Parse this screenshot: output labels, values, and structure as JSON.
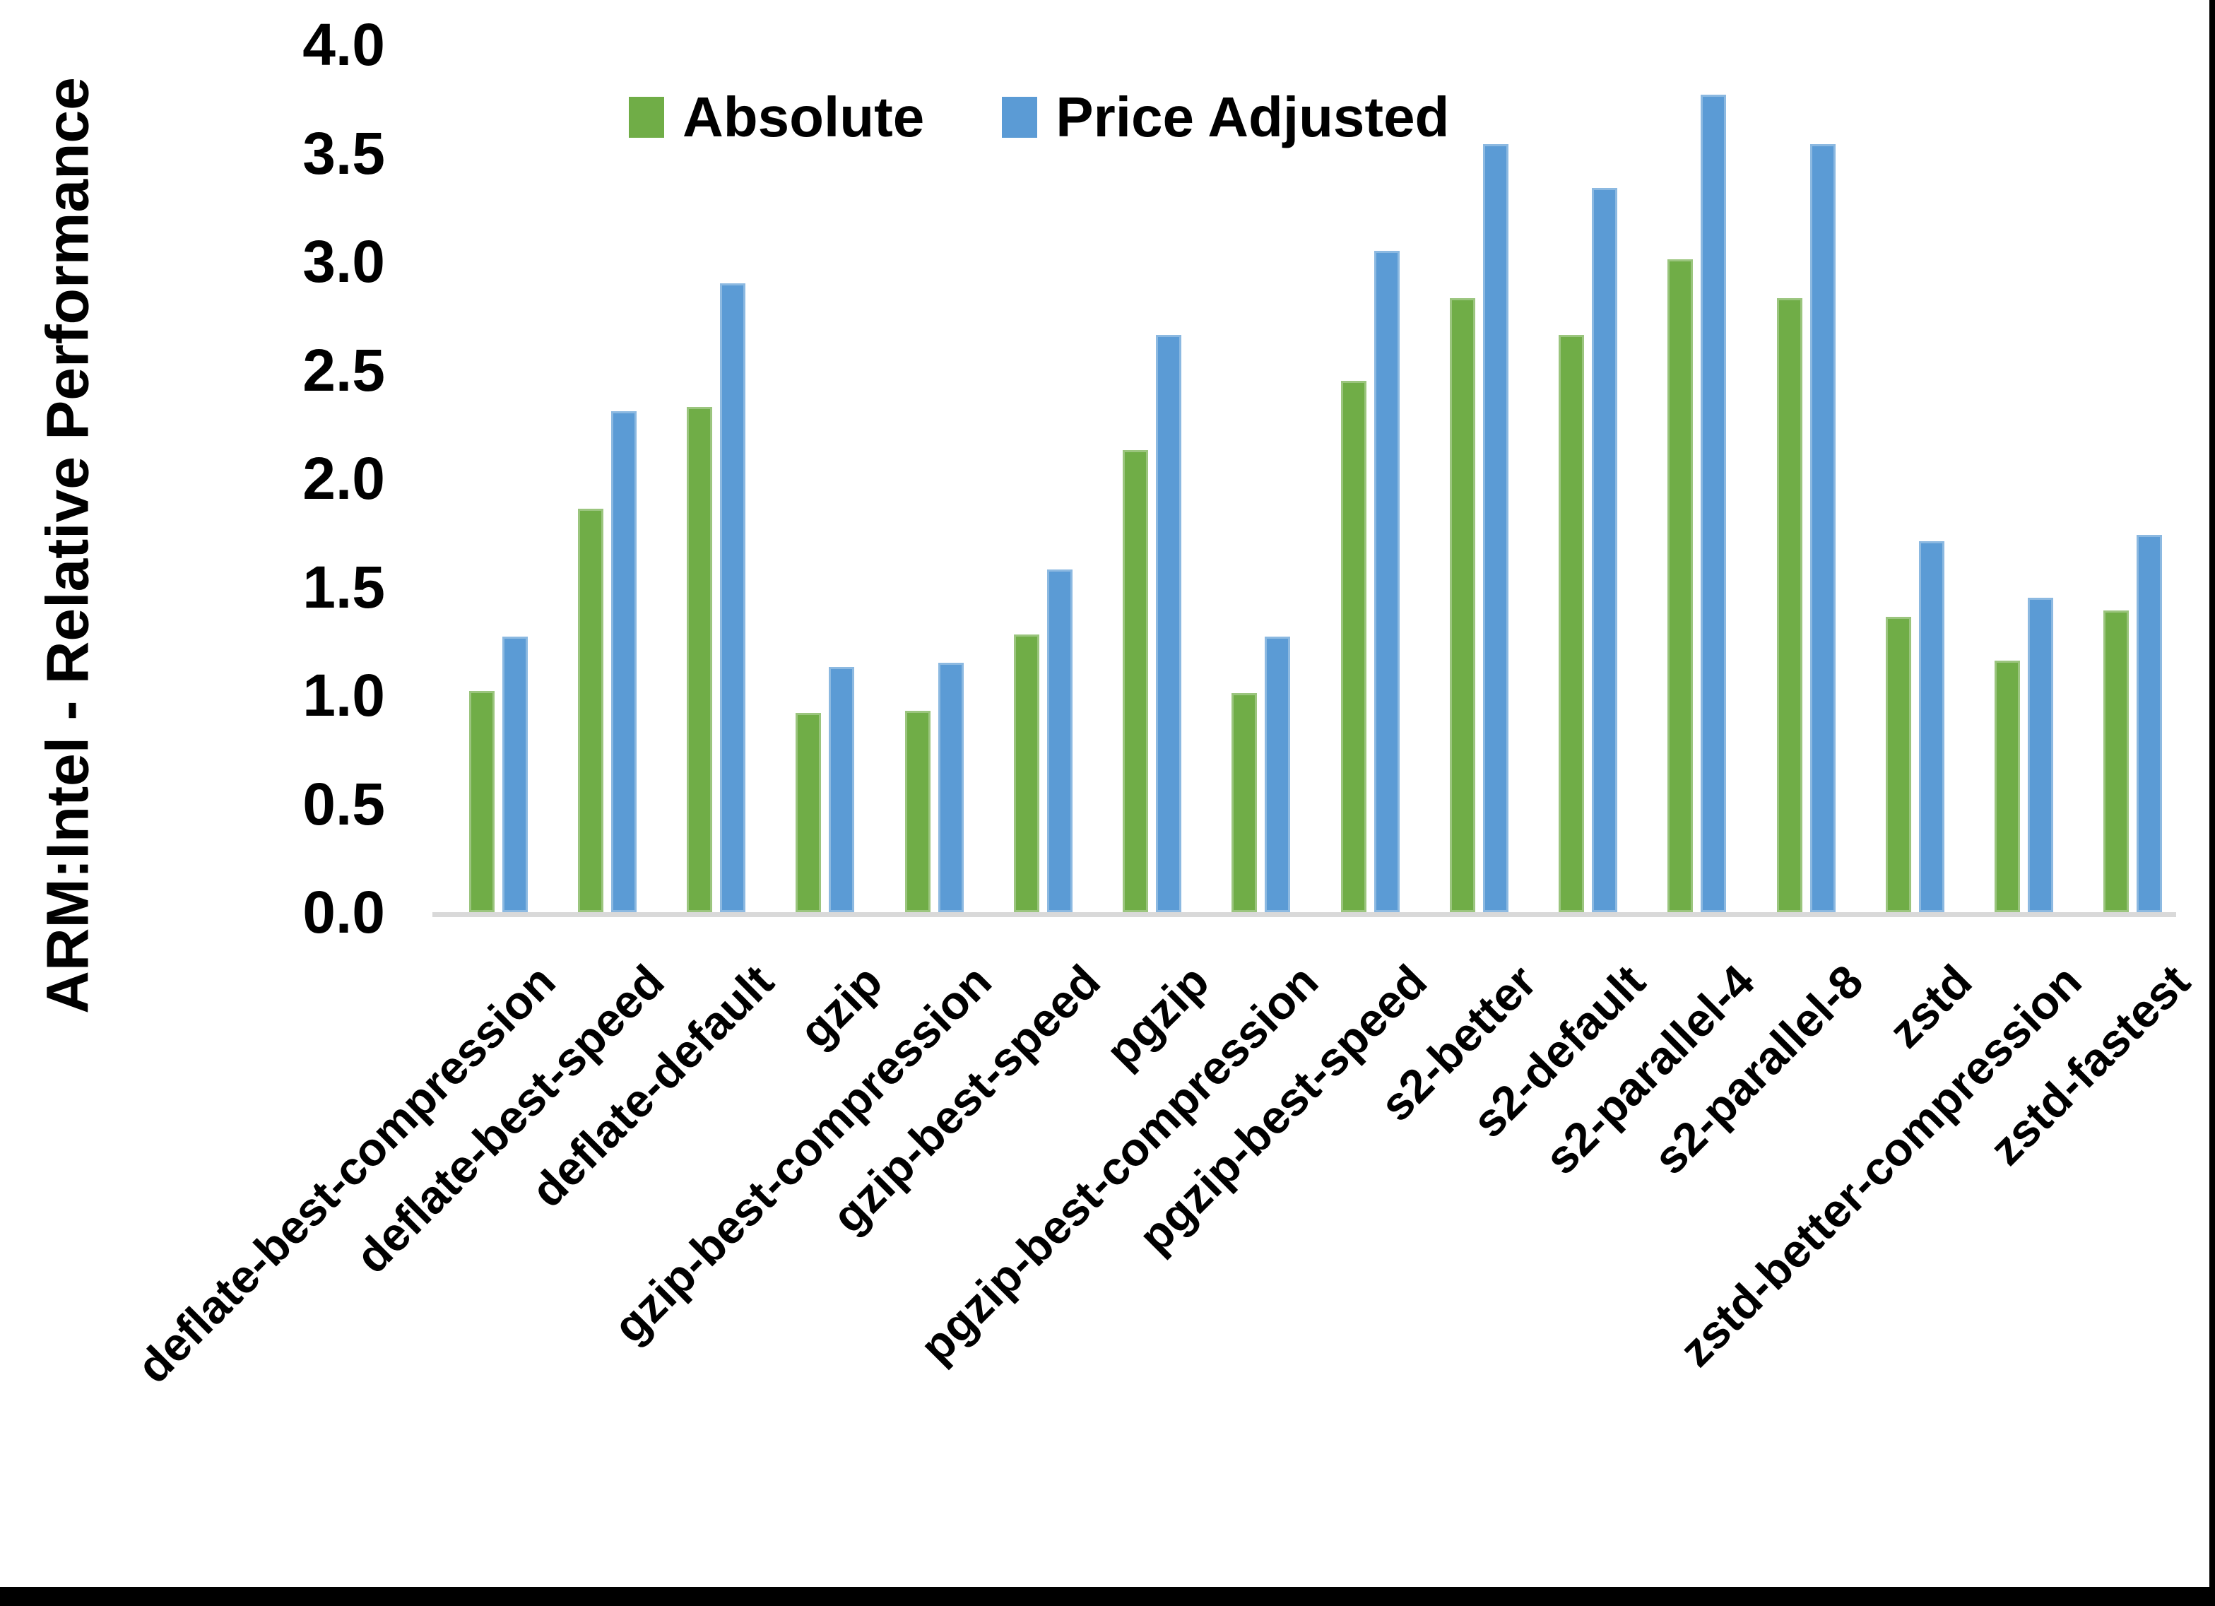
{
  "frame": {
    "background": "#ffffff",
    "axis_line_color": "#d9d9d9",
    "bottom_border_color": "#000000",
    "right_border_color": "#000000"
  },
  "chart_data": {
    "type": "bar",
    "title": "",
    "xlabel": "",
    "ylabel": "ARM:Intel - Relative Performance",
    "ylim": [
      0,
      4
    ],
    "ytick_step": 0.5,
    "yticks": [
      "4.0",
      "3.5",
      "3.0",
      "2.5",
      "2.0",
      "1.5",
      "1.0",
      "0.5",
      "0.0"
    ],
    "grid": false,
    "legend_position": "top-center",
    "categories": [
      "deflate-best-compression",
      "deflate-best-speed",
      "deflate-default",
      "gzip",
      "gzip-best-compression",
      "gzip-best-speed",
      "pgzip",
      "pgzip-best-compression",
      "pgzip-best-speed",
      "s2-better",
      "s2-default",
      "s2-parallel-4",
      "s2-parallel-8",
      "zstd",
      "zstd-better-compression",
      "zstd-fastest"
    ],
    "series": [
      {
        "name": "Absolute",
        "color": "#70AD47",
        "values": [
          1.02,
          1.86,
          2.33,
          0.92,
          0.93,
          1.28,
          2.13,
          1.01,
          2.45,
          2.83,
          2.66,
          3.01,
          2.83,
          1.36,
          1.16,
          1.39
        ]
      },
      {
        "name": "Price Adjusted",
        "color": "#5B9BD5",
        "values": [
          1.27,
          2.31,
          2.9,
          1.13,
          1.15,
          1.58,
          2.66,
          1.27,
          3.05,
          3.54,
          3.34,
          3.77,
          3.54,
          1.71,
          1.45,
          1.74
        ]
      }
    ]
  }
}
